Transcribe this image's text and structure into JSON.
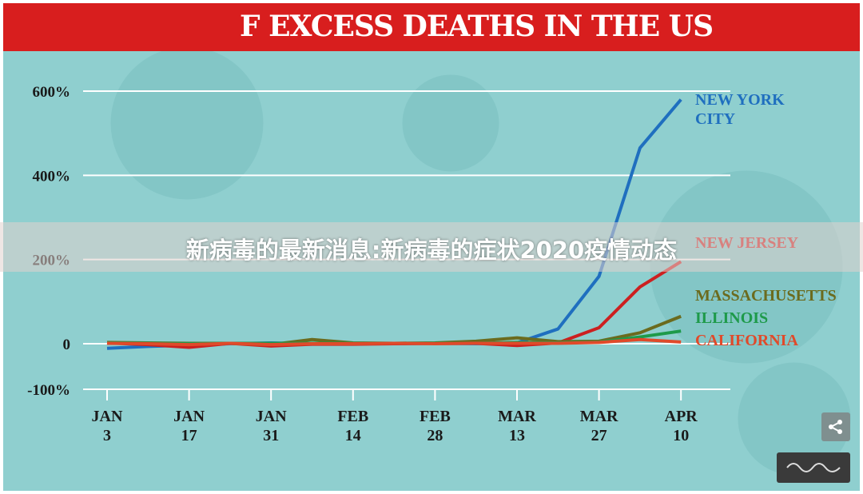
{
  "header": {
    "title": "F EXCESS DEATHS IN THE US"
  },
  "overlay": {
    "banner_text": "新病毒的最新消息:新病毒的症状2020疫情动态"
  },
  "controls": {
    "share_icon": "share-icon",
    "wave_icon": "wave-icon"
  },
  "colors": {
    "header_bg": "#d81e1e",
    "chart_bg": "#8fcfcf",
    "new_york_city": "#1f6fbf",
    "new_jersey": "#cc2020",
    "massachusetts": "#6b6b1e",
    "illinois": "#1e9a4a",
    "california": "#e04a2a"
  },
  "chart_data": {
    "type": "line",
    "title": "F EXCESS DEATHS IN THE US",
    "xlabel": "",
    "ylabel": "",
    "x_ticks": [
      "JAN 3",
      "JAN 17",
      "JAN 31",
      "FEB 14",
      "FEB 28",
      "MAR 13",
      "MAR 27",
      "APR 10"
    ],
    "y_ticks": [
      "600%",
      "400%",
      "200%",
      "0",
      "-100%"
    ],
    "ylim": [
      -100,
      600
    ],
    "grid": true,
    "legend": "right, labels at line ends",
    "x": [
      "JAN 3",
      "JAN 10",
      "JAN 17",
      "JAN 24",
      "JAN 31",
      "FEB 7",
      "FEB 14",
      "FEB 21",
      "FEB 28",
      "MAR 6",
      "MAR 13",
      "MAR 20",
      "MAR 27",
      "APR 3",
      "APR 10"
    ],
    "series": [
      {
        "name": "NEW YORK CITY",
        "color": "#1f6fbf",
        "values": [
          -10,
          -6,
          -3,
          0,
          2,
          0,
          0,
          0,
          1,
          0,
          2,
          35,
          160,
          465,
          580
        ]
      },
      {
        "name": "NEW JERSEY",
        "color": "#cc2020",
        "values": [
          2,
          -2,
          -8,
          1,
          -5,
          -1,
          -1,
          0,
          1,
          1,
          -4,
          2,
          38,
          135,
          195
        ]
      },
      {
        "name": "MASSACHUSETTS",
        "color": "#6b6b1e",
        "values": [
          3,
          2,
          1,
          1,
          -2,
          10,
          2,
          1,
          2,
          6,
          14,
          5,
          6,
          26,
          65
        ]
      },
      {
        "name": "ILLINOIS",
        "color": "#1e9a4a",
        "values": [
          2,
          1,
          0,
          1,
          1,
          1,
          1,
          1,
          1,
          1,
          3,
          2,
          4,
          16,
          30
        ]
      },
      {
        "name": "CALIFORNIA",
        "color": "#e04a2a",
        "values": [
          1,
          0,
          -2,
          1,
          -2,
          0,
          0,
          1,
          0,
          1,
          1,
          1,
          3,
          10,
          4
        ]
      }
    ],
    "series_labels": [
      {
        "lines": [
          "NEW YORK",
          "CITY"
        ],
        "color": "#1f6fbf"
      },
      {
        "lines": [
          "NEW JERSEY"
        ],
        "color": "#cc2020"
      },
      {
        "lines": [
          "MASSACHUSETTS"
        ],
        "color": "#6b6b1e"
      },
      {
        "lines": [
          "ILLINOIS"
        ],
        "color": "#1e9a4a"
      },
      {
        "lines": [
          "CALIFORNIA"
        ],
        "color": "#e04a2a"
      }
    ]
  }
}
